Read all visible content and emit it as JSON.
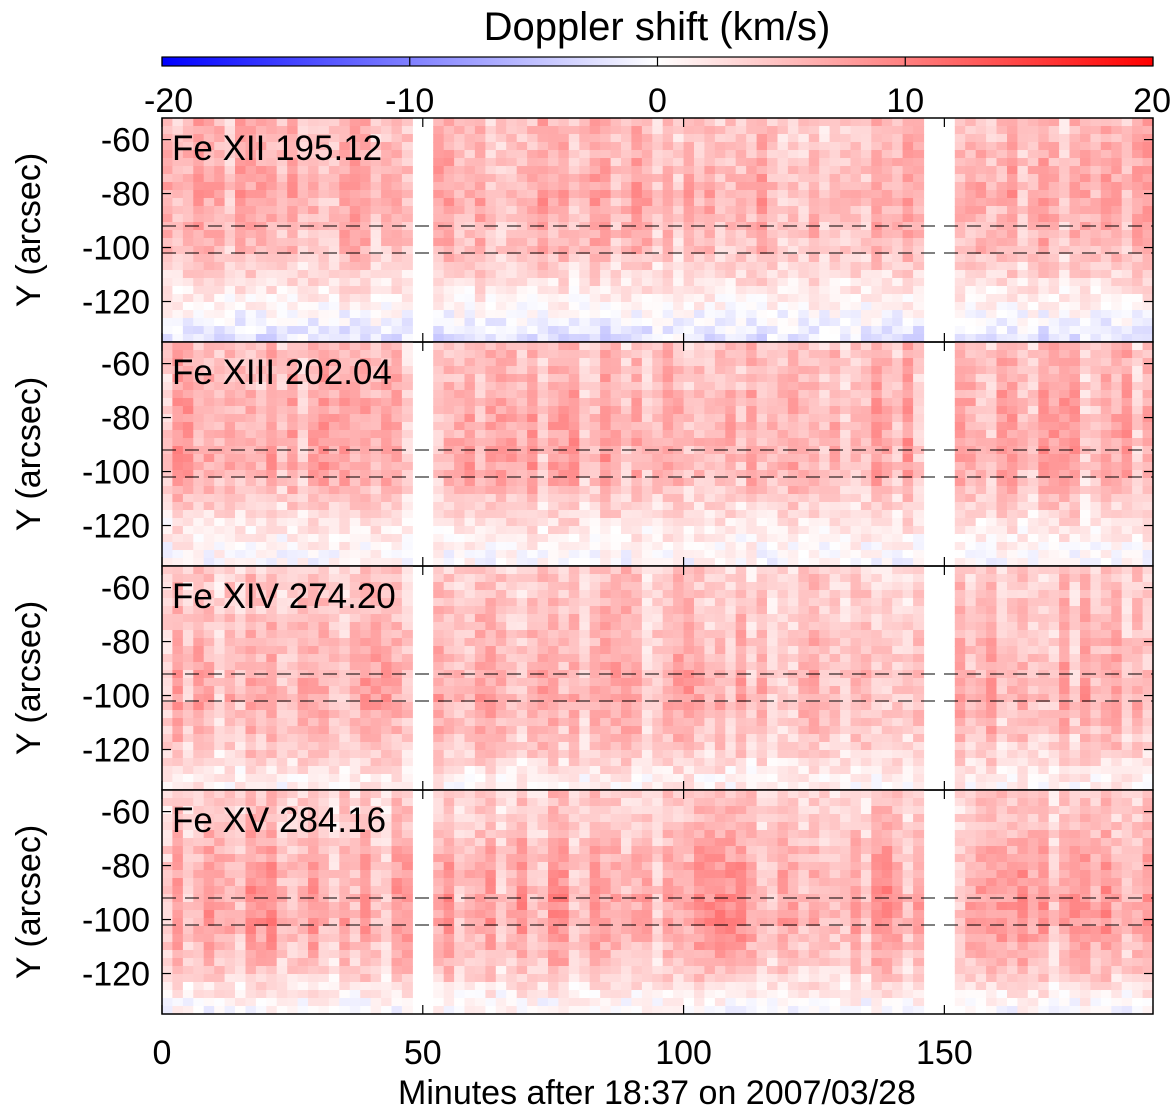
{
  "chart_data": {
    "type": "heatmap",
    "colorbar": {
      "title": "Doppler shift (km/s)",
      "range": [
        -20,
        20
      ],
      "ticks": [
        -20,
        -10,
        0,
        10,
        20
      ],
      "tick_labels": [
        "-20",
        "-10",
        "0",
        "10",
        "20"
      ],
      "colors": {
        "negative": "#0000ff",
        "zero": "#ffffff",
        "positive": "#ff0000"
      }
    },
    "xaxis": {
      "label": "Minutes after 18:37 on 2007/03/28",
      "range": [
        0,
        190
      ],
      "ticks": [
        0,
        50,
        100,
        150
      ],
      "tick_labels": [
        "0",
        "50",
        "100",
        "150"
      ]
    },
    "yaxis": {
      "label": "Y (arcsec)",
      "range": [
        -135,
        -52
      ],
      "ticks": [
        -60,
        -80,
        -100,
        -120
      ],
      "tick_labels": [
        "-60",
        "-80",
        "-100",
        "-120"
      ]
    },
    "data_gaps_minutes": [
      [
        48.5,
        53
      ],
      [
        146,
        152
      ]
    ],
    "dashed_reference_lines_y": [
      -92,
      -102
    ],
    "panels": [
      {
        "label": "Fe XII 195.12",
        "mean_shift_by_y": [
          {
            "y": -60,
            "v": 5
          },
          {
            "y": -80,
            "v": 6
          },
          {
            "y": -100,
            "v": 5
          },
          {
            "y": -120,
            "v": 1
          },
          {
            "y": -132,
            "v": -2
          }
        ]
      },
      {
        "label": "Fe XIII 202.04",
        "mean_shift_by_y": [
          {
            "y": -60,
            "v": 5
          },
          {
            "y": -80,
            "v": 6
          },
          {
            "y": -100,
            "v": 6
          },
          {
            "y": -120,
            "v": 2
          },
          {
            "y": -132,
            "v": 0
          }
        ]
      },
      {
        "label": "Fe XIV 274.20",
        "mean_shift_by_y": [
          {
            "y": -60,
            "v": 4
          },
          {
            "y": -80,
            "v": 5
          },
          {
            "y": -100,
            "v": 6
          },
          {
            "y": -120,
            "v": 4
          },
          {
            "y": -132,
            "v": 1
          }
        ]
      },
      {
        "label": "Fe XV 284.16",
        "mean_shift_by_y": [
          {
            "y": -60,
            "v": 4
          },
          {
            "y": -80,
            "v": 6
          },
          {
            "y": -100,
            "v": 7
          },
          {
            "y": -120,
            "v": 4
          },
          {
            "y": -132,
            "v": 0
          }
        ]
      }
    ]
  }
}
